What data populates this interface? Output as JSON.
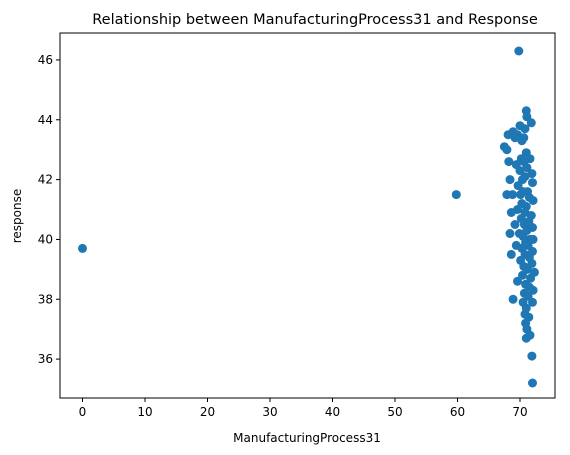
{
  "chart_data": {
    "type": "scatter",
    "title": "Relationship between ManufacturingProcess31 and Response",
    "xlabel": "ManufacturingProcess31",
    "ylabel": "response",
    "xlim": [
      -3.6,
      75.6
    ],
    "ylim": [
      34.7,
      46.9
    ],
    "xticks": [
      0,
      10,
      20,
      30,
      40,
      50,
      60,
      70
    ],
    "yticks": [
      36,
      38,
      40,
      42,
      44,
      46
    ],
    "grid": false,
    "marker_color": "#1f77b4",
    "series": [
      {
        "points": [
          [
            0.0,
            39.7
          ],
          [
            59.8,
            41.5
          ],
          [
            69.8,
            46.3
          ],
          [
            71.0,
            44.3
          ],
          [
            71.1,
            44.1
          ],
          [
            71.8,
            43.9
          ],
          [
            70.0,
            43.8
          ],
          [
            70.8,
            43.7
          ],
          [
            68.9,
            43.6
          ],
          [
            68.1,
            43.5
          ],
          [
            69.6,
            43.5
          ],
          [
            70.6,
            43.4
          ],
          [
            69.2,
            43.4
          ],
          [
            70.3,
            43.3
          ],
          [
            67.5,
            43.1
          ],
          [
            67.9,
            43.0
          ],
          [
            71.0,
            42.9
          ],
          [
            70.2,
            42.7
          ],
          [
            71.6,
            42.7
          ],
          [
            70.6,
            42.6
          ],
          [
            68.2,
            42.6
          ],
          [
            69.4,
            42.5
          ],
          [
            71.1,
            42.4
          ],
          [
            70.0,
            42.3
          ],
          [
            71.9,
            42.2
          ],
          [
            70.8,
            42.1
          ],
          [
            68.4,
            42.0
          ],
          [
            70.4,
            42.0
          ],
          [
            72.0,
            41.9
          ],
          [
            69.7,
            41.8
          ],
          [
            70.5,
            41.6
          ],
          [
            71.2,
            41.6
          ],
          [
            67.9,
            41.5
          ],
          [
            68.8,
            41.5
          ],
          [
            70.1,
            41.5
          ],
          [
            71.5,
            41.4
          ],
          [
            72.1,
            41.3
          ],
          [
            70.3,
            41.2
          ],
          [
            71.0,
            41.1
          ],
          [
            69.6,
            41.0
          ],
          [
            70.8,
            40.9
          ],
          [
            68.6,
            40.9
          ],
          [
            71.8,
            40.8
          ],
          [
            70.2,
            40.7
          ],
          [
            71.4,
            40.6
          ],
          [
            69.2,
            40.5
          ],
          [
            70.7,
            40.5
          ],
          [
            72.0,
            40.4
          ],
          [
            71.1,
            40.3
          ],
          [
            68.4,
            40.2
          ],
          [
            69.9,
            40.2
          ],
          [
            70.5,
            40.1
          ],
          [
            71.6,
            40.0
          ],
          [
            72.1,
            40.0
          ],
          [
            70.9,
            39.9
          ],
          [
            69.4,
            39.8
          ],
          [
            71.3,
            39.8
          ],
          [
            70.3,
            39.7
          ],
          [
            72.0,
            39.6
          ],
          [
            70.8,
            39.5
          ],
          [
            68.6,
            39.5
          ],
          [
            71.5,
            39.4
          ],
          [
            70.1,
            39.3
          ],
          [
            71.9,
            39.2
          ],
          [
            70.6,
            39.1
          ],
          [
            71.2,
            39.0
          ],
          [
            72.3,
            38.9
          ],
          [
            70.4,
            38.8
          ],
          [
            71.7,
            38.7
          ],
          [
            69.6,
            38.6
          ],
          [
            70.9,
            38.5
          ],
          [
            71.5,
            38.4
          ],
          [
            72.1,
            38.3
          ],
          [
            70.7,
            38.2
          ],
          [
            71.3,
            38.1
          ],
          [
            68.9,
            38.0
          ],
          [
            70.5,
            37.9
          ],
          [
            72.0,
            37.9
          ],
          [
            71.0,
            37.7
          ],
          [
            70.8,
            37.5
          ],
          [
            71.4,
            37.4
          ],
          [
            70.9,
            37.2
          ],
          [
            71.1,
            37.0
          ],
          [
            71.6,
            36.8
          ],
          [
            71.0,
            36.7
          ],
          [
            71.9,
            36.1
          ],
          [
            72.0,
            35.2
          ]
        ]
      }
    ]
  }
}
